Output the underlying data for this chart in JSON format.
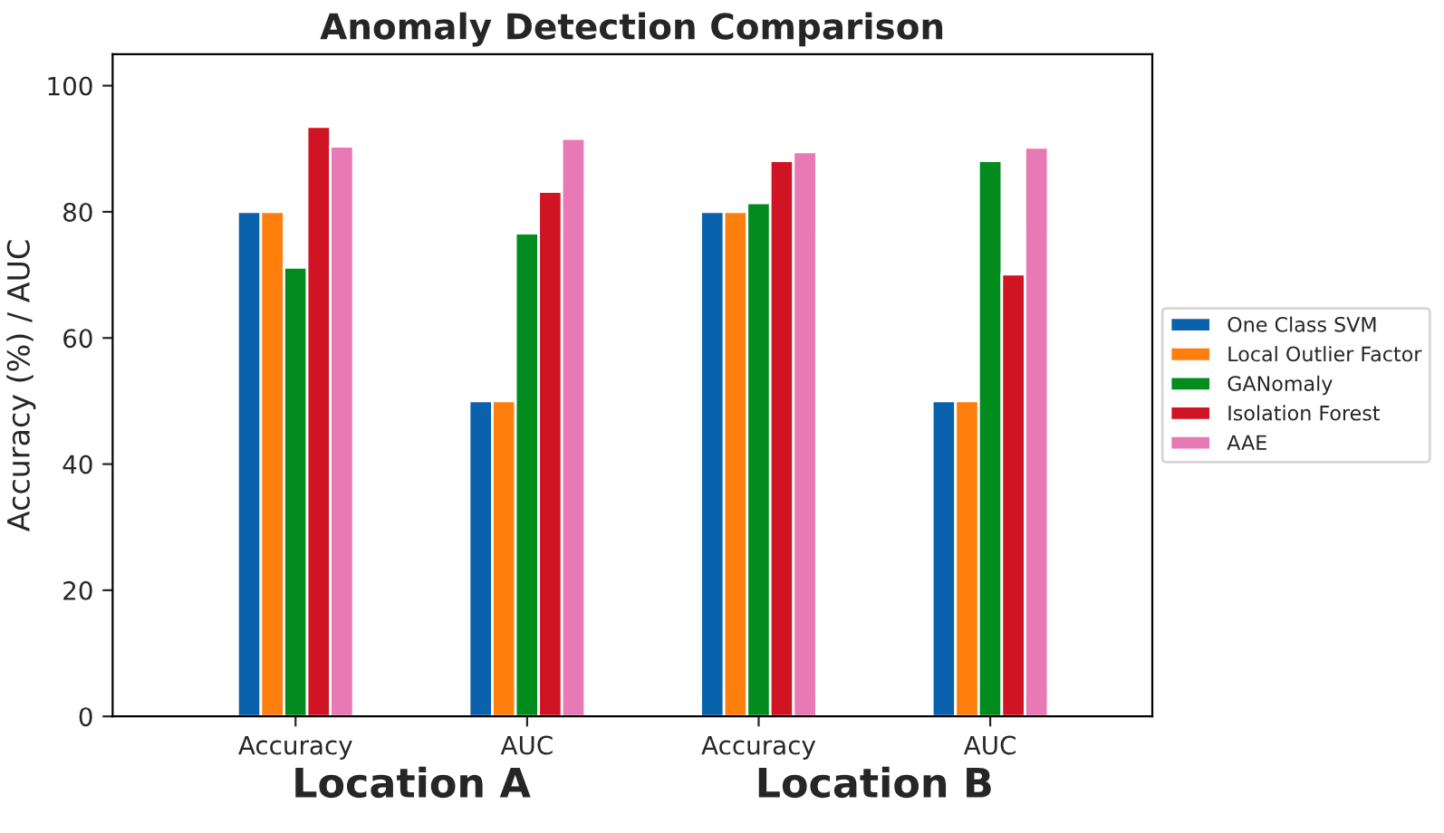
{
  "chart_data": {
    "type": "bar",
    "title": "Anomaly Detection Comparison",
    "ylabel": "Accuracy (%) / AUC",
    "categories": [
      "Accuracy",
      "AUC",
      "Accuracy",
      "AUC"
    ],
    "series": [
      {
        "name": "One Class SVM",
        "color": "#0a62ad",
        "values": [
          80,
          50,
          80,
          50
        ]
      },
      {
        "name": "Local Outlier Factor",
        "color": "#ff7f0e",
        "values": [
          80,
          50,
          80,
          50
        ]
      },
      {
        "name": "GANomaly",
        "color": "#038c1e",
        "values": [
          71.2,
          76.6,
          81.4,
          88.1
        ]
      },
      {
        "name": "Isolation Forest",
        "color": "#d01424",
        "values": [
          93.5,
          83.2,
          88.1,
          70.1
        ]
      },
      {
        "name": "AAE",
        "color": "#e77ab5",
        "values": [
          90.4,
          91.6,
          89.5,
          90.2
        ]
      }
    ],
    "ylim": [
      0,
      105
    ],
    "yticks": [
      0,
      20,
      40,
      60,
      80,
      100
    ],
    "grid": false,
    "legend": "right",
    "annotations": [
      "Location A",
      "Location B"
    ]
  }
}
